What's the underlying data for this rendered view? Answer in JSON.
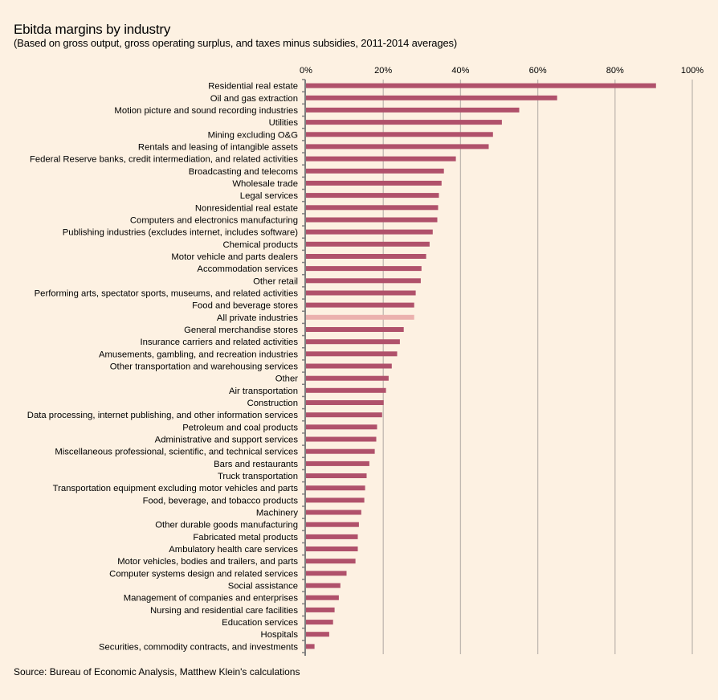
{
  "chart_data": {
    "type": "bar",
    "orientation": "horizontal",
    "title": "Ebitda margins by industry",
    "subtitle": "(Based on gross output, gross operating surplus, and taxes minus subsidies, 2011-2014 averages)",
    "xlabel": "",
    "ylabel": "",
    "xlim": [
      0,
      100
    ],
    "x_ticks": [
      0,
      20,
      40,
      60,
      80,
      100
    ],
    "x_tick_labels": [
      "0%",
      "20%",
      "40%",
      "60%",
      "80%",
      "100%"
    ],
    "x_axis_position": "top",
    "grid": true,
    "legend": "none",
    "source": "Source: Bureau of Economic Analysis, Matthew Klein's calculations",
    "colors": {
      "bar": "#b0516b",
      "highlight": "#ebb1ae",
      "grid": "#c0b8b0",
      "axis": "#7f7f7f",
      "background": "#fdf1e2"
    },
    "highlight_category": "All private industries",
    "categories": [
      "Residential real estate",
      "Oil and gas extraction",
      "Motion picture and sound recording industries",
      "Utilities",
      "Mining excluding O&G",
      "Rentals and leasing of intangible assets",
      "Federal Reserve banks, credit intermediation, and related activities",
      "Broadcasting and telecoms",
      "Wholesale trade",
      "Legal services",
      "Nonresidential real estate",
      "Computers and electronics manufacturing",
      "Publishing industries (excludes internet, includes software)",
      "Chemical products",
      "Motor vehicle and parts dealers",
      "Accommodation services",
      "Other retail",
      "Performing arts, spectator sports, museums, and related activities",
      "Food and beverage stores",
      "All private industries",
      "General merchandise stores",
      "Insurance carriers and related activities",
      "Amusements, gambling, and recreation industries",
      "Other transportation and warehousing services",
      "Other",
      "Air transportation",
      "Construction",
      "Data processing, internet publishing, and other information services",
      "Petroleum and coal products",
      "Administrative and support services",
      "Miscellaneous professional, scientific, and technical services",
      "Bars and restaurants",
      "Truck transportation",
      "Transportation equipment excluding motor vehicles and parts",
      "Food, beverage, and tobacco products",
      "Machinery",
      "Other durable goods manufacturing",
      "Fabricated metal products",
      "Ambulatory health care services",
      "Motor vehicles, bodies and trailers, and parts",
      "Computer systems design and related services",
      "Social assistance",
      "Management of companies and enterprises",
      "Nursing and residential care facilities",
      "Education services",
      "Hospitals",
      "Securities, commodity contracts, and investments"
    ],
    "values": [
      90.6,
      65.0,
      55.2,
      50.7,
      48.4,
      47.3,
      38.8,
      35.7,
      35.1,
      34.4,
      34.2,
      34.0,
      32.8,
      32.0,
      31.1,
      29.9,
      29.7,
      28.4,
      28.0,
      28.0,
      25.3,
      24.3,
      23.6,
      22.2,
      21.4,
      20.7,
      20.1,
      19.7,
      18.4,
      18.2,
      17.8,
      16.4,
      15.7,
      15.3,
      15.1,
      14.3,
      13.7,
      13.4,
      13.4,
      12.8,
      10.5,
      8.9,
      8.5,
      7.4,
      7.0,
      6.0,
      2.2
    ]
  }
}
